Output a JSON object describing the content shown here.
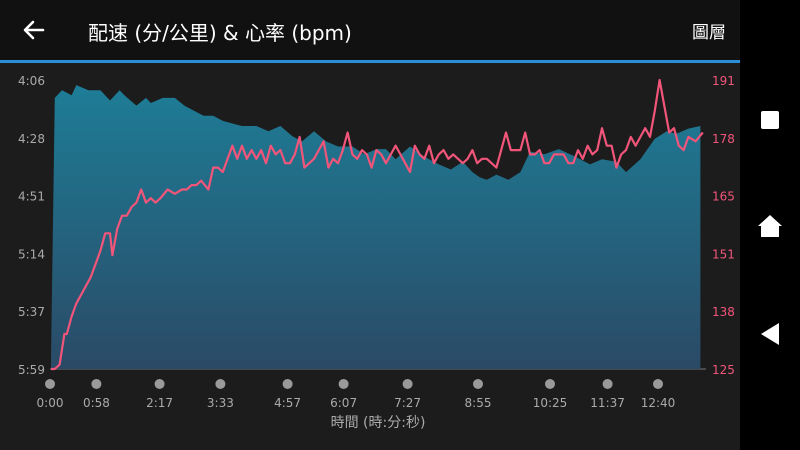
{
  "header": {
    "back_icon": "arrow-left-icon",
    "title": "配速 (分/公里) & 心率 (bpm)",
    "layers_label": "圖層"
  },
  "nav": {
    "square_icon": "square-icon",
    "home_icon": "home-icon",
    "back_icon": "triangle-back-icon"
  },
  "colors": {
    "accent": "#2a8fd8",
    "heart_rate": "#f2557a",
    "pace_fill_top": "#1e7d97",
    "pace_fill_bottom": "#2a4a66"
  },
  "chart_data": {
    "type": "area",
    "xlabel": "時間 (時:分:秒)",
    "x_ticks": [
      "0:00",
      "0:58",
      "2:17",
      "3:33",
      "4:57",
      "6:07",
      "7:27",
      "8:55",
      "10:25",
      "11:37",
      "12:40"
    ],
    "x_tick_minutes": [
      0,
      0.967,
      2.283,
      3.55,
      4.95,
      6.117,
      7.45,
      8.917,
      10.417,
      11.617,
      12.667
    ],
    "xlim": [
      0,
      13.667
    ],
    "y_left_ticks": [
      "4:06",
      "4:28",
      "4:51",
      "5:14",
      "5:37",
      "5:59"
    ],
    "y_left_lim_sec": [
      246,
      359
    ],
    "y_left_inverted": true,
    "y_right_ticks": [
      "191",
      "178",
      "165",
      "151",
      "138",
      "125"
    ],
    "y_right_lim": [
      125,
      191
    ],
    "series": [
      {
        "unit": "min/km",
        "type": "area",
        "x": [
          0.02,
          0.1,
          0.25,
          0.45,
          0.55,
          0.8,
          1.05,
          1.25,
          1.45,
          1.55,
          1.8,
          2.0,
          2.1,
          2.35,
          2.6,
          2.8,
          3.0,
          3.2,
          3.4,
          3.6,
          3.8,
          4.0,
          4.3,
          4.55,
          4.8,
          5.05,
          5.25,
          5.5,
          5.75,
          6.0,
          6.3,
          6.55,
          6.8,
          7.0,
          7.2,
          7.5,
          7.8,
          8.1,
          8.35,
          8.6,
          8.8,
          8.95,
          9.1,
          9.3,
          9.55,
          9.8,
          10.0,
          10.3,
          10.6,
          10.95,
          11.25,
          11.5,
          11.8,
          12.0,
          12.3,
          12.6,
          12.85,
          13.05,
          13.3,
          13.55
        ],
        "y_sec": [
          355,
          253,
          250,
          252,
          248,
          250,
          250,
          254,
          250,
          252,
          256,
          253,
          255,
          253,
          253,
          256,
          258,
          260,
          260,
          262,
          263,
          264,
          264,
          266,
          264,
          268,
          270,
          266,
          270,
          272,
          272,
          275,
          273,
          273,
          277,
          272,
          276,
          279,
          281,
          278,
          282,
          284,
          285,
          283,
          285,
          282,
          274,
          275,
          273,
          276,
          279,
          277,
          278,
          282,
          277,
          269,
          266,
          267,
          265,
          264
        ]
      },
      {
        "unit": "bpm",
        "type": "line",
        "x": [
          0.02,
          0.1,
          0.2,
          0.3,
          0.35,
          0.45,
          0.55,
          0.65,
          0.75,
          0.85,
          0.95,
          1.05,
          1.15,
          1.25,
          1.3,
          1.4,
          1.5,
          1.6,
          1.7,
          1.8,
          1.9,
          2.0,
          2.1,
          2.2,
          2.3,
          2.45,
          2.6,
          2.75,
          2.85,
          2.95,
          3.05,
          3.15,
          3.3,
          3.4,
          3.5,
          3.6,
          3.7,
          3.8,
          3.9,
          4.0,
          4.1,
          4.2,
          4.3,
          4.4,
          4.5,
          4.6,
          4.7,
          4.8,
          4.9,
          5.0,
          5.1,
          5.2,
          5.3,
          5.4,
          5.5,
          5.6,
          5.7,
          5.8,
          5.9,
          6.0,
          6.1,
          6.2,
          6.3,
          6.4,
          6.5,
          6.6,
          6.7,
          6.8,
          6.9,
          7.0,
          7.1,
          7.2,
          7.3,
          7.4,
          7.5,
          7.6,
          7.7,
          7.8,
          7.9,
          8.0,
          8.1,
          8.2,
          8.3,
          8.4,
          8.5,
          8.6,
          8.7,
          8.8,
          8.9,
          9.0,
          9.1,
          9.2,
          9.3,
          9.4,
          9.5,
          9.6,
          9.7,
          9.8,
          9.9,
          10.0,
          10.1,
          10.2,
          10.3,
          10.4,
          10.5,
          10.6,
          10.7,
          10.8,
          10.9,
          11.0,
          11.1,
          11.2,
          11.3,
          11.4,
          11.5,
          11.6,
          11.7,
          11.8,
          11.9,
          12.0,
          12.1,
          12.2,
          12.3,
          12.4,
          12.5,
          12.6,
          12.7,
          12.8,
          12.9,
          13.0,
          13.1,
          13.2,
          13.3,
          13.45,
          13.6
        ],
        "y": [
          125,
          125,
          126,
          133,
          133,
          137,
          140,
          142,
          144,
          146,
          149,
          152,
          156,
          156,
          151,
          157,
          160,
          160,
          162,
          163,
          166,
          163,
          164,
          163,
          164,
          166,
          165,
          166,
          166,
          167,
          167,
          168,
          166,
          171,
          171,
          170,
          173,
          176,
          173,
          176,
          173,
          175,
          173,
          175,
          172,
          176,
          174,
          175,
          172,
          172,
          174,
          178,
          171,
          172,
          173,
          175,
          177,
          171,
          173,
          172,
          175,
          179,
          174,
          173,
          175,
          174,
          171,
          175,
          174,
          172,
          174,
          176,
          174,
          172,
          170,
          176,
          174,
          173,
          176,
          172,
          174,
          175,
          173,
          174,
          173,
          172,
          173,
          175,
          172,
          173,
          173,
          172,
          171,
          175,
          179,
          175,
          175,
          175,
          179,
          174,
          174,
          175,
          172,
          172,
          174,
          174,
          174,
          172,
          172,
          175,
          173,
          176,
          174,
          175,
          180,
          176,
          176,
          171,
          174,
          175,
          178,
          176,
          178,
          180,
          178,
          184,
          191,
          185,
          179,
          180,
          176,
          175,
          178,
          177,
          179
        ]
      }
    ]
  }
}
